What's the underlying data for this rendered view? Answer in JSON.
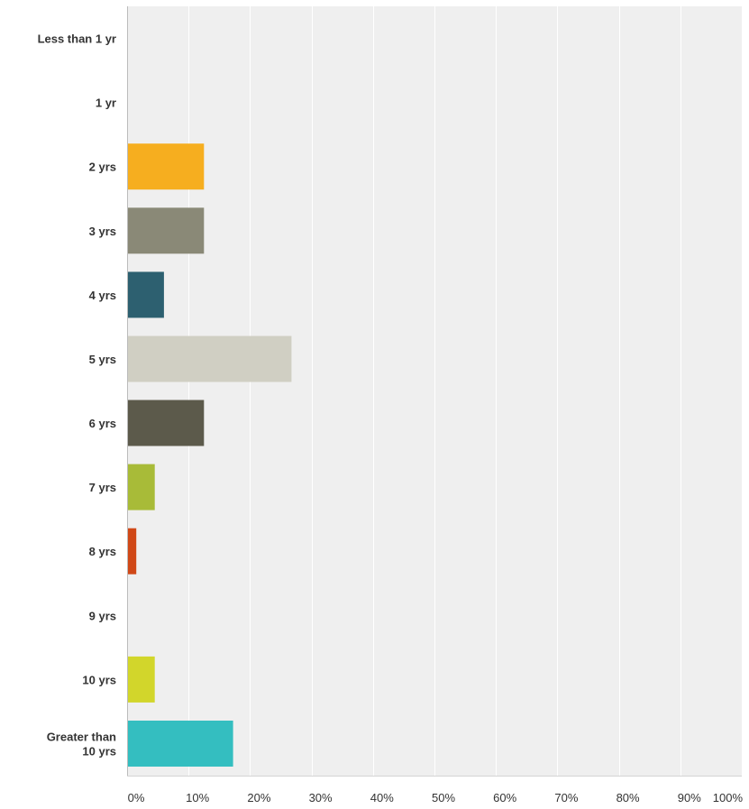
{
  "chart_data": {
    "type": "bar",
    "orientation": "horizontal",
    "categories": [
      [
        "Less than 1 yr"
      ],
      [
        "1 yr"
      ],
      [
        "2 yrs"
      ],
      [
        "3 yrs"
      ],
      [
        "4 yrs"
      ],
      [
        "5 yrs"
      ],
      [
        "6 yrs"
      ],
      [
        "7 yrs"
      ],
      [
        "8 yrs"
      ],
      [
        "9 yrs"
      ],
      [
        "10 yrs"
      ],
      [
        "Greater than",
        "10 yrs"
      ]
    ],
    "values": [
      0,
      0,
      12.5,
      12.5,
      6,
      26.75,
      12.5,
      4.5,
      1.5,
      0,
      4.5,
      17.25
    ],
    "bar_colors": [
      "#f6ae1f",
      "#f6ae1f",
      "#f6ae1f",
      "#8a8977",
      "#2d6070",
      "#d0cfc3",
      "#5c5a4b",
      "#a8bb38",
      "#d04817",
      "#8a8977",
      "#d2d62b",
      "#34bec0"
    ],
    "xlim": [
      0,
      100
    ],
    "xticks": [
      0,
      10,
      20,
      30,
      40,
      50,
      60,
      70,
      80,
      90,
      100
    ],
    "xtick_labels": [
      "0%",
      "10%",
      "20%",
      "30%",
      "40%",
      "50%",
      "60%",
      "70%",
      "80%",
      "90%",
      "100%"
    ],
    "title": "",
    "xlabel": "",
    "ylabel": "",
    "grid": "vertical",
    "plot_background": "#efefef",
    "gridline_color": "#ffffff",
    "label_color": "#333333"
  }
}
